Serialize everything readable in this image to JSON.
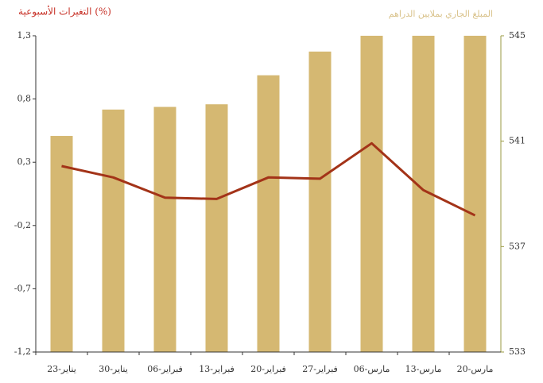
{
  "chart_data": {
    "type": "bar-line",
    "y_title": "التغيرات الأسبوعية (%)",
    "y2_title": "المبلغ الجاري بملايين الدراهم",
    "categories": [
      "23-يناير",
      "30-يناير",
      "06-فبراير",
      "13-فبراير",
      "20-فبراير",
      "27-فبراير",
      "06-مارس",
      "13-مارس",
      "20-مارس"
    ],
    "series": [
      {
        "name": "المبلغ الجاري",
        "type": "bar",
        "axis": "y2",
        "color": "#d5b872",
        "values": [
          541.2,
          542.2,
          542.3,
          542.4,
          543.5,
          544.4,
          545,
          545,
          545
        ]
      },
      {
        "name": "التغيرات الأسبوعية",
        "type": "line",
        "axis": "y",
        "color": "#a33318",
        "values": [
          0.27,
          0.18,
          0.02,
          0.01,
          0.18,
          0.17,
          0.45,
          0.08,
          -0.12
        ]
      }
    ],
    "ylim": [
      -1.2,
      1.3
    ],
    "yticks": [
      {
        "value": -1.2,
        "label": "-1,2"
      },
      {
        "value": -0.7,
        "label": "-0,7"
      },
      {
        "value": -0.2,
        "label": "-0,2"
      },
      {
        "value": 0.3,
        "label": "0,3"
      },
      {
        "value": 0.8,
        "label": "0,8"
      },
      {
        "value": 1.3,
        "label": "1,3"
      }
    ],
    "y2lim": [
      533,
      545
    ],
    "y2ticks": [
      533,
      537,
      541,
      545
    ]
  }
}
